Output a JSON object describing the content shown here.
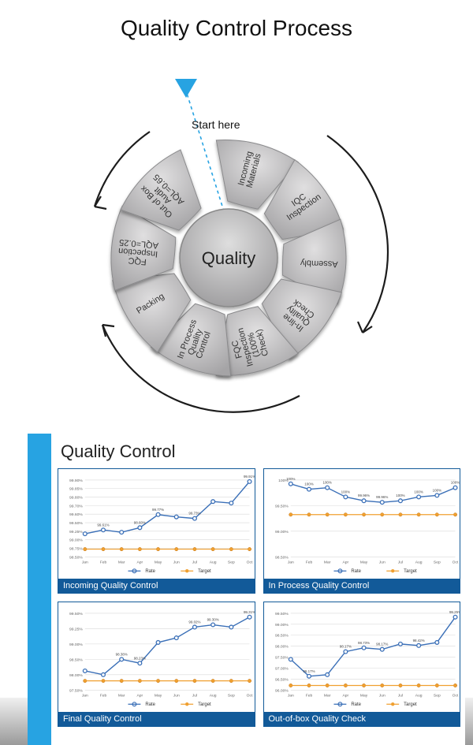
{
  "title": "Quality Control Process",
  "start_label": "Start here",
  "center_label": "Quality",
  "petals": [
    {
      "label": "Incoming Materials",
      "angle": 15
    },
    {
      "label": "IQC Inspection",
      "angle": 55
    },
    {
      "label": "Assembly",
      "angle": 92
    },
    {
      "label": "In-line Quality Check",
      "angle": 128
    },
    {
      "label": "FQC Inspection (100% Check)",
      "angle": 165
    },
    {
      "label": "In Process Quality Control",
      "angle": 200
    },
    {
      "label": "Packing",
      "angle": 238
    },
    {
      "label": "FQC Inspection AQL=0.25",
      "angle": 275
    },
    {
      "label": "Out of Box Audit AQL=0.65",
      "angle": 315
    }
  ],
  "wheel_colors": {
    "petal_light": "#e0dfe0",
    "petal_dark": "#a5a4a6",
    "center_light": "#dedede",
    "center_dark": "#9c9b9d",
    "outline": "#6f6f70",
    "arrow": "#1c1c1c",
    "pointer": "#27a3e2",
    "dash": "#27a3e2"
  },
  "panel_title": "Quality Control",
  "panel_accent": "#27a3e2",
  "chart_caption_bg": "#125a99",
  "months": [
    "Jan",
    "Feb",
    "Mar",
    "Apr",
    "May",
    "Jun",
    "Jul",
    "Aug",
    "Sep",
    "Oct"
  ],
  "rate_color": "#3a6fb7",
  "target_color": "#f0a030",
  "grid_color": "#d9d9d9",
  "charts": [
    {
      "caption": "Incoming Quality Control",
      "ylabels": [
        "98.50%",
        "98.75%",
        "99.00%",
        "99.25%",
        "99.50%",
        "99.60%",
        "99.70%",
        "99.80%",
        "99.85%",
        "99.90%"
      ],
      "rate": [
        0.3,
        0.35,
        0.32,
        0.38,
        0.55,
        0.52,
        0.5,
        0.72,
        0.7,
        0.98
      ],
      "target": [
        0.1,
        0.1,
        0.1,
        0.1,
        0.1,
        0.1,
        0.1,
        0.1,
        0.1,
        0.1
      ],
      "point_labels": [
        "",
        "99.61%",
        "",
        "98.60%",
        "99.77%",
        "",
        "99.73%",
        "",
        "",
        "99.91%"
      ]
    },
    {
      "caption": "In Process Quality Control",
      "ylabels": [
        "98.50%",
        "99.00%",
        "99.50%",
        "100%"
      ],
      "rate": [
        0.95,
        0.88,
        0.9,
        0.78,
        0.73,
        0.71,
        0.73,
        0.78,
        0.8,
        0.9
      ],
      "target": [
        0.55,
        0.55,
        0.55,
        0.55,
        0.55,
        0.55,
        0.55,
        0.55,
        0.55,
        0.55
      ],
      "point_labels": [
        "100%",
        "100%",
        "100%",
        "100%",
        "99.96%",
        "99.96%",
        "100%",
        "100%",
        "100%",
        "100%"
      ]
    },
    {
      "caption": "Final Quality Control",
      "ylabels": [
        "97.50%",
        "98.00%",
        "98.50%",
        "99.00%",
        "99.25%",
        "99.50%"
      ],
      "rate": [
        0.25,
        0.2,
        0.4,
        0.35,
        0.62,
        0.68,
        0.82,
        0.85,
        0.82,
        0.95
      ],
      "target": [
        0.12,
        0.12,
        0.12,
        0.12,
        0.12,
        0.12,
        0.12,
        0.12,
        0.12,
        0.12
      ],
      "point_labels": [
        "",
        "",
        "98.38%",
        "98.23%",
        "",
        "",
        "99.02%",
        "99.30%",
        "",
        "99.31%"
      ]
    },
    {
      "caption": "Out-of-box Quality Check",
      "ylabels": [
        "96.00%",
        "96.50%",
        "97.00%",
        "97.50%",
        "98.00%",
        "98.50%",
        "99.00%",
        "99.50%"
      ],
      "rate": [
        0.4,
        0.18,
        0.2,
        0.5,
        0.55,
        0.53,
        0.6,
        0.58,
        0.62,
        0.95
      ],
      "target": [
        0.06,
        0.06,
        0.06,
        0.06,
        0.06,
        0.06,
        0.06,
        0.06,
        0.06,
        0.06
      ],
      "point_labels": [
        "",
        "96.17%",
        "",
        "98.17%",
        "98.73%",
        "98.17%",
        "",
        "98.42%",
        "",
        "99.25%"
      ]
    }
  ]
}
